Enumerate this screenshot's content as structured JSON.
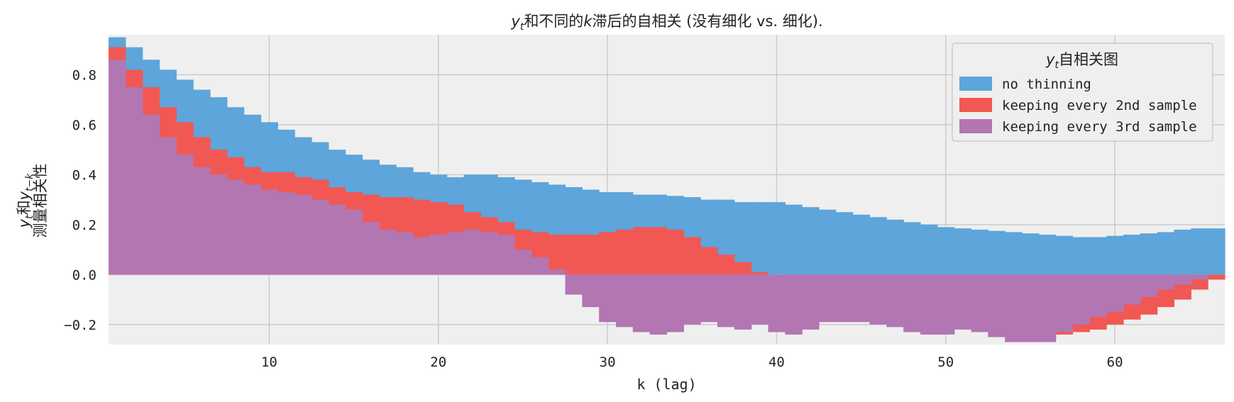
{
  "chart_data": {
    "type": "bar",
    "title_parts": [
      "y",
      "t",
      "和不同的",
      "k",
      "滞后的自相关 (没有细化 vs. 细化)."
    ],
    "xlabel": "k (lag)",
    "ylabel_line1_parts": [
      "y",
      "t",
      "和",
      "y",
      "t−k"
    ],
    "ylabel_line2": "测量相关性",
    "xlim": [
      0.5,
      66.5
    ],
    "ylim": [
      -0.28,
      0.96
    ],
    "xticks": [
      10,
      20,
      30,
      40,
      50,
      60
    ],
    "yticks": [
      -0.2,
      0.0,
      0.2,
      0.4,
      0.6,
      0.8
    ],
    "ytick_labels": [
      "−0.2",
      "0.0",
      "0.2",
      "0.4",
      "0.6",
      "0.8"
    ],
    "grid": true,
    "background": "#efefef",
    "legend": {
      "placement": "top-right",
      "title_parts": [
        "y",
        "t",
        "自相关图"
      ]
    },
    "series": [
      {
        "name": "no thinning",
        "color": "#5da5da",
        "values": [
          0.95,
          0.91,
          0.86,
          0.82,
          0.78,
          0.74,
          0.71,
          0.67,
          0.64,
          0.61,
          0.58,
          0.55,
          0.53,
          0.5,
          0.48,
          0.46,
          0.44,
          0.43,
          0.41,
          0.4,
          0.39,
          0.4,
          0.4,
          0.39,
          0.38,
          0.37,
          0.36,
          0.35,
          0.34,
          0.33,
          0.33,
          0.32,
          0.32,
          0.315,
          0.31,
          0.3,
          0.3,
          0.29,
          0.29,
          0.29,
          0.28,
          0.27,
          0.26,
          0.25,
          0.24,
          0.23,
          0.22,
          0.21,
          0.2,
          0.19,
          0.185,
          0.18,
          0.175,
          0.17,
          0.165,
          0.16,
          0.155,
          0.15,
          0.15,
          0.155,
          0.16,
          0.165,
          0.17,
          0.18,
          0.185,
          0.185
        ]
      },
      {
        "name": "keeping every 2nd sample",
        "color": "#f15854",
        "values": [
          0.91,
          0.82,
          0.75,
          0.67,
          0.61,
          0.55,
          0.5,
          0.47,
          0.43,
          0.41,
          0.41,
          0.39,
          0.38,
          0.35,
          0.33,
          0.32,
          0.31,
          0.31,
          0.3,
          0.29,
          0.28,
          0.25,
          0.23,
          0.21,
          0.18,
          0.17,
          0.16,
          0.16,
          0.16,
          0.17,
          0.18,
          0.19,
          0.19,
          0.18,
          0.15,
          0.11,
          0.08,
          0.05,
          0.01,
          0.0,
          -0.02,
          -0.05,
          -0.08,
          -0.12,
          -0.15,
          -0.17,
          -0.18,
          -0.19,
          -0.2,
          -0.21,
          -0.21,
          -0.22,
          -0.23,
          -0.24,
          -0.25,
          -0.25,
          -0.24,
          -0.23,
          -0.22,
          -0.2,
          -0.18,
          -0.16,
          -0.13,
          -0.1,
          -0.06,
          -0.02
        ]
      },
      {
        "name": "keeping every 3rd sample",
        "color": "#b276b2",
        "values": [
          0.86,
          0.75,
          0.64,
          0.55,
          0.48,
          0.43,
          0.4,
          0.38,
          0.36,
          0.34,
          0.33,
          0.32,
          0.3,
          0.28,
          0.26,
          0.21,
          0.18,
          0.17,
          0.15,
          0.16,
          0.17,
          0.18,
          0.17,
          0.16,
          0.1,
          0.07,
          0.02,
          -0.08,
          -0.13,
          -0.19,
          -0.21,
          -0.23,
          -0.24,
          -0.23,
          -0.2,
          -0.19,
          -0.21,
          -0.22,
          -0.2,
          -0.23,
          -0.24,
          -0.22,
          -0.19,
          -0.19,
          -0.19,
          -0.2,
          -0.21,
          -0.23,
          -0.24,
          -0.24,
          -0.22,
          -0.23,
          -0.25,
          -0.27,
          -0.27,
          -0.27,
          -0.23,
          -0.2,
          -0.17,
          -0.15,
          -0.12,
          -0.09,
          -0.06,
          -0.04,
          -0.02,
          0.0
        ]
      }
    ]
  }
}
